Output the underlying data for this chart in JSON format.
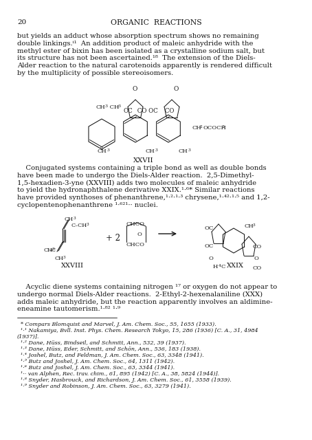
{
  "page_number": "20",
  "header": "ORGANIC  REACTIONS",
  "bg_color": "#ffffff",
  "text_color": "#1a1a1a",
  "p1_lines": [
    "but yields an adduct whose absorption spectrum shows no remaining",
    "double linkings.ⁱ¹  An addition product of maleic anhydride with the",
    "methyl ester of bixin has been isolated as a crystalline sodium salt, but",
    "its structure has not been ascertained.¹⁸  The extension of the Diels-",
    "Alder reaction to the natural carotenoids apparently is rendered difficult",
    "by the multiplicity of possible stereoisomers."
  ],
  "label_xxvii": "XXVII",
  "p2_lines": [
    "    Conjugated systems containing a triple bond as well as double bonds",
    "have been made to undergo the Diels-Alder reaction.  2,5-Dimethyl-",
    "1,5-hexadien-3-yne (XXVIII) adds two molecules of maleic anhydride",
    "to yield the hydronaphthalene derivative XXIX.¹·⁶* Similar reactions",
    "have provided synthoses of phenanthrene,¹·²·¹·³ chrysene,¹·⁴²·¹·⁵ and 1,2-",
    "cyclopentenophenanthrene ¹·⁶²¹·· nuclei."
  ],
  "label_xxviii": "XXVIII",
  "label_xxix": "XXIX",
  "p3_lines": [
    "    Acyclic diene systems containing nitrogen ¹⁷ or oxygen do not appear to",
    "undergo normal Diels-Alder reactions.  2-Ethyl-2-hexenalaniline (XXX)",
    "adds maleic anhydride, but the reaction apparently involves an aldimine-",
    "eneamine tautomerism.¹·⁸² ¹·⁹"
  ],
  "footnote_lines": [
    "  * Compars Blomquist and Marvel, J. Am. Chem. Soc., 55, 1655 (1933).",
    "  ¹·¹ Nakamiya, Bvll. Inst. Phys. Chem. Research Tokyo, 15, 286 (1936) [C. A., 31, 4984",
    "(1937)].",
    "  ¹·² Dane, Hüss, Bindseil, and Schmitt, Ann., 532, 39 (1937).",
    "  ¹·³ Dane, Hüss, Eder, Schmitt, and Schön, Ann., 536, 183 (1938).",
    "  ¹·⁴ Joshel, Butz, and Feldman, J. Am. Chem. Soc., 63, 3348 (1941).",
    "  ¹·⁵ Butz and Joshel, J. Am. Chem. Soc., 64, 1311 (1942).",
    "  ¹·⁶ Butz and Joshel, J. Am. Chem. Soc., 63, 3344 (1941).",
    "  ¹·· van Alphen, Rec. trav. chim., 61, 895 (1942) [C. A., 38, 5824 (1944)].",
    "  ¹·⁸ Snyder, Hasbrouck, and Richardson, J. Am. Chem. Soc., 61, 3558 (1939).",
    "  ¹·⁹ Snyder and Robinson, J. Am. Chem. Soc., 63, 3279 (1941)."
  ]
}
